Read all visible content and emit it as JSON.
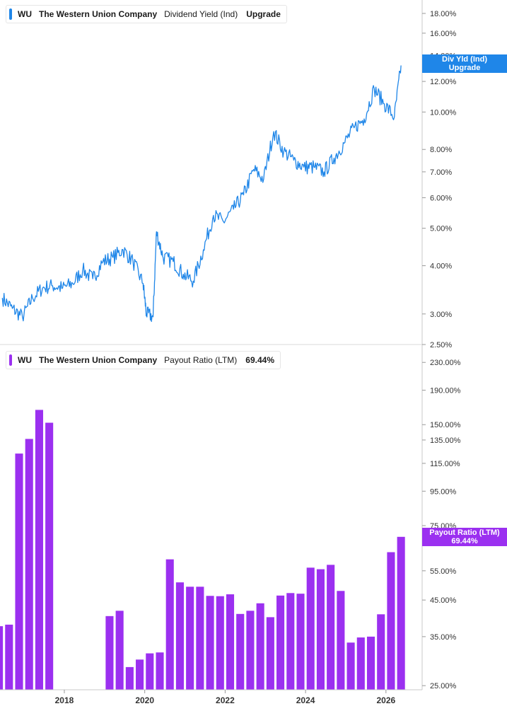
{
  "chart_data": [
    {
      "type": "line",
      "ticker": "WU",
      "company": "The Western Union Company",
      "metric": "Dividend Yield (Ind)",
      "current_value": "Upgrade",
      "tag_label": "Div Yld (Ind)",
      "tag_value": "Upgrade",
      "color": "#1f86e8",
      "y_scale": "log",
      "ylim": [
        2.5,
        19.5
      ],
      "y_ticks": [
        "18.00%",
        "16.00%",
        "14.00%",
        "12.00%",
        "10.00%",
        "8.00%",
        "7.00%",
        "6.00%",
        "5.00%",
        "4.00%",
        "3.00%",
        "2.50%"
      ],
      "x": [
        "2016-06",
        "2016-09",
        "2016-12",
        "2017-03",
        "2017-06",
        "2017-09",
        "2017-12",
        "2018-03",
        "2018-06",
        "2018-09",
        "2018-12",
        "2019-03",
        "2019-06",
        "2019-09",
        "2019-12",
        "2020-01",
        "2020-03",
        "2020-04",
        "2020-06",
        "2020-09",
        "2020-12",
        "2021-03",
        "2021-06",
        "2021-09",
        "2021-12",
        "2022-03",
        "2022-06",
        "2022-09",
        "2022-12",
        "2023-03",
        "2023-06",
        "2023-09",
        "2023-12",
        "2024-03",
        "2024-06",
        "2024-09",
        "2024-12",
        "2025-03",
        "2025-06",
        "2025-09",
        "2025-12",
        "2026-03",
        "2026-05"
      ],
      "values": [
        3.3,
        3.1,
        2.95,
        3.3,
        3.5,
        3.55,
        3.5,
        3.6,
        3.9,
        3.7,
        4.1,
        4.2,
        4.4,
        4.1,
        3.6,
        3.0,
        2.95,
        4.9,
        4.2,
        4.1,
        3.8,
        3.65,
        4.4,
        5.4,
        5.2,
        5.6,
        6.1,
        7.1,
        6.7,
        8.9,
        7.9,
        7.5,
        7.2,
        7.2,
        7.0,
        7.6,
        8.3,
        9.1,
        9.6,
        11.5,
        10.5,
        9.7,
        13.2
      ],
      "x_ticks": [
        "2018",
        "2020",
        "2022",
        "2024",
        "2026"
      ],
      "grid": false,
      "legend": "top-left"
    },
    {
      "type": "bar",
      "ticker": "WU",
      "company": "The Western Union Company",
      "metric": "Payout Ratio (LTM)",
      "current_value": "69.44%",
      "tag_label": "Payout Ratio (LTM)",
      "tag_value": "69.44%",
      "color": "#9b30f0",
      "y_scale": "log",
      "ylim": [
        24.3,
        260
      ],
      "y_ticks": [
        "230.00%",
        "190.00%",
        "150.00%",
        "135.00%",
        "115.00%",
        "95.00%",
        "75.00%",
        "55.00%",
        "45.00%",
        "35.00%",
        "25.00%"
      ],
      "categories": [
        "2016-Q2",
        "2016-Q3",
        "2016-Q4",
        "2017-Q1",
        "2017-Q2",
        "2017-Q3",
        "2017-Q4",
        "2018-Q1",
        "2018-Q2",
        "2018-Q3",
        "2018-Q4",
        "2019-Q1",
        "2019-Q2",
        "2019-Q3",
        "2019-Q4",
        "2020-Q1",
        "2020-Q2",
        "2020-Q3",
        "2020-Q4",
        "2021-Q1",
        "2021-Q2",
        "2021-Q3",
        "2021-Q4",
        "2022-Q1",
        "2022-Q2",
        "2022-Q3",
        "2022-Q4",
        "2023-Q1",
        "2023-Q2",
        "2023-Q3",
        "2023-Q4",
        "2024-Q1",
        "2024-Q2",
        "2024-Q3",
        "2024-Q4",
        "2025-Q1",
        "2025-Q2",
        "2025-Q3",
        "2025-Q4",
        "2026-Q1",
        "2026-Q2"
      ],
      "values": [
        37.6,
        38.0,
        123,
        136,
        166,
        152,
        null,
        null,
        null,
        null,
        null,
        40.3,
        41.8,
        28.4,
        29.9,
        31.2,
        31.4,
        59.5,
        50.8,
        49.3,
        49.3,
        46.3,
        46.2,
        46.8,
        40.9,
        41.8,
        44.0,
        40.0,
        46.4,
        47.2,
        47.0,
        56.2,
        55.6,
        57.3,
        47.9,
        33.6,
        34.8,
        35.0,
        40.8,
        62.5,
        69.44
      ],
      "x_ticks": [
        "2018",
        "2020",
        "2022",
        "2024",
        "2026"
      ],
      "grid": false,
      "legend": "top-left"
    }
  ]
}
